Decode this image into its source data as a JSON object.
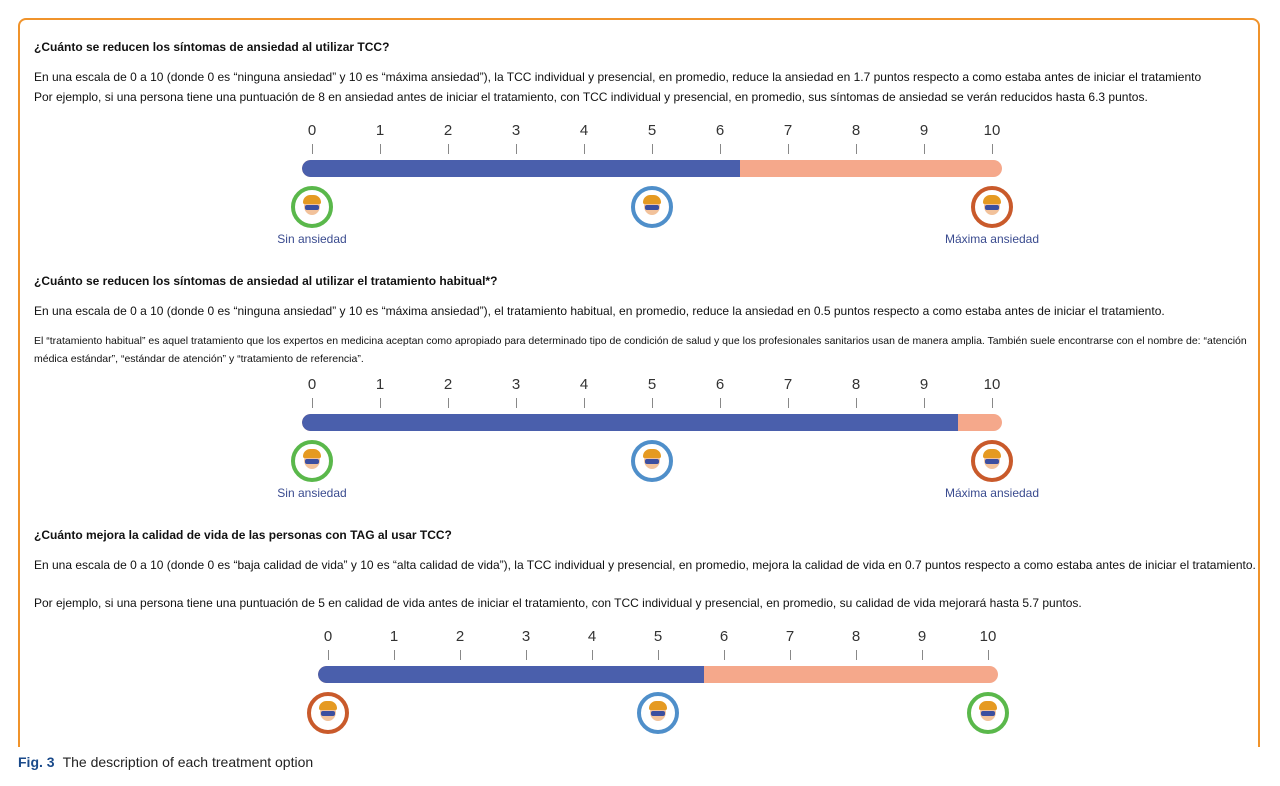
{
  "caption": {
    "label": "Fig. 3",
    "text": "The description of each treatment option"
  },
  "colors": {
    "bar_fill": "#4a5fac",
    "bar_rest": "#f5a88b",
    "frame_border": "#f0932b",
    "ring_green": "#5ab84b",
    "ring_blue": "#4f8fca",
    "ring_red": "#c95a2b"
  },
  "sections": [
    {
      "heading": "¿Cuánto se reducen los síntomas de ansiedad al utilizar TCC?",
      "lines": [
        "En una escala de 0 a 10 (donde 0 es “ninguna ansiedad” y 10 es “máxima ansiedad”), la TCC individual y presencial, en promedio, reduce la ansiedad en 1.7 puntos respecto a como estaba antes de iniciar el tratamiento",
        "Por ejemplo, si una persona tiene una puntuación de 8 en ansiedad antes de iniciar el tratamiento, con TCC individual y presencial, en promedio, sus síntomas de ansiedad se verán reducidos hasta 6.3 puntos."
      ],
      "scale": {
        "ticks": [
          "0",
          "1",
          "2",
          "3",
          "4",
          "5",
          "6",
          "7",
          "8",
          "9",
          "10"
        ],
        "value": 6.3,
        "max": 10
      },
      "faces": [
        {
          "icon": "face-icon",
          "ring": "green",
          "position": 0,
          "label": "Sin ansiedad"
        },
        {
          "icon": "face-icon",
          "ring": "blue",
          "position": 5,
          "label": ""
        },
        {
          "icon": "face-icon",
          "ring": "red",
          "position": 10,
          "label": "Máxima ansiedad"
        }
      ]
    },
    {
      "heading": "¿Cuánto se reducen los síntomas de ansiedad al utilizar el tratamiento habitual*?",
      "lines": [
        "En una escala de 0 a 10 (donde 0 es “ninguna ansiedad” y 10 es “máxima ansiedad”), el tratamiento habitual, en promedio, reduce la ansiedad en 0.5 puntos respecto a como estaba antes de iniciar el tratamiento."
      ],
      "note": "El “tratamiento habitual” es aquel tratamiento que los expertos en medicina aceptan como apropiado para determinado tipo de condición de salud y que los profesionales sanitarios usan de manera amplia. También suele encontrarse con el nombre de: “atención médica estándar”, “estándar de atención” y “tratamiento de referencia”.",
      "scale": {
        "ticks": [
          "0",
          "1",
          "2",
          "3",
          "4",
          "5",
          "6",
          "7",
          "8",
          "9",
          "10"
        ],
        "value": 9.5,
        "max": 10
      },
      "faces": [
        {
          "icon": "face-icon",
          "ring": "green",
          "position": 0,
          "label": "Sin ansiedad"
        },
        {
          "icon": "face-icon",
          "ring": "blue",
          "position": 5,
          "label": ""
        },
        {
          "icon": "face-icon",
          "ring": "red",
          "position": 10,
          "label": "Máxima ansiedad"
        }
      ]
    },
    {
      "heading": "¿Cuánto mejora la calidad de vida de las personas con TAG al usar TCC?",
      "lines": [
        "En una escala de 0 a 10 (donde 0 es “baja calidad de vida” y 10 es “alta calidad de vida”), la TCC individual y presencial, en promedio, mejora la calidad de vida en 0.7 puntos respecto a como estaba antes de iniciar el tratamiento.",
        "Por ejemplo, si una persona tiene una puntuación de 5 en calidad de vida antes de iniciar el tratamiento, con TCC individual y presencial, en promedio, su calidad de vida mejorará hasta 5.7 puntos."
      ],
      "scale": {
        "ticks": [
          "0",
          "1",
          "2",
          "3",
          "4",
          "5",
          "6",
          "7",
          "8",
          "9",
          "10"
        ],
        "value": 5.7,
        "max": 10
      },
      "faces": [
        {
          "icon": "face-icon",
          "ring": "red",
          "position": 0,
          "label": ""
        },
        {
          "icon": "face-icon",
          "ring": "blue",
          "position": 5,
          "label": ""
        },
        {
          "icon": "face-icon",
          "ring": "green",
          "position": 10,
          "label": ""
        }
      ]
    }
  ]
}
